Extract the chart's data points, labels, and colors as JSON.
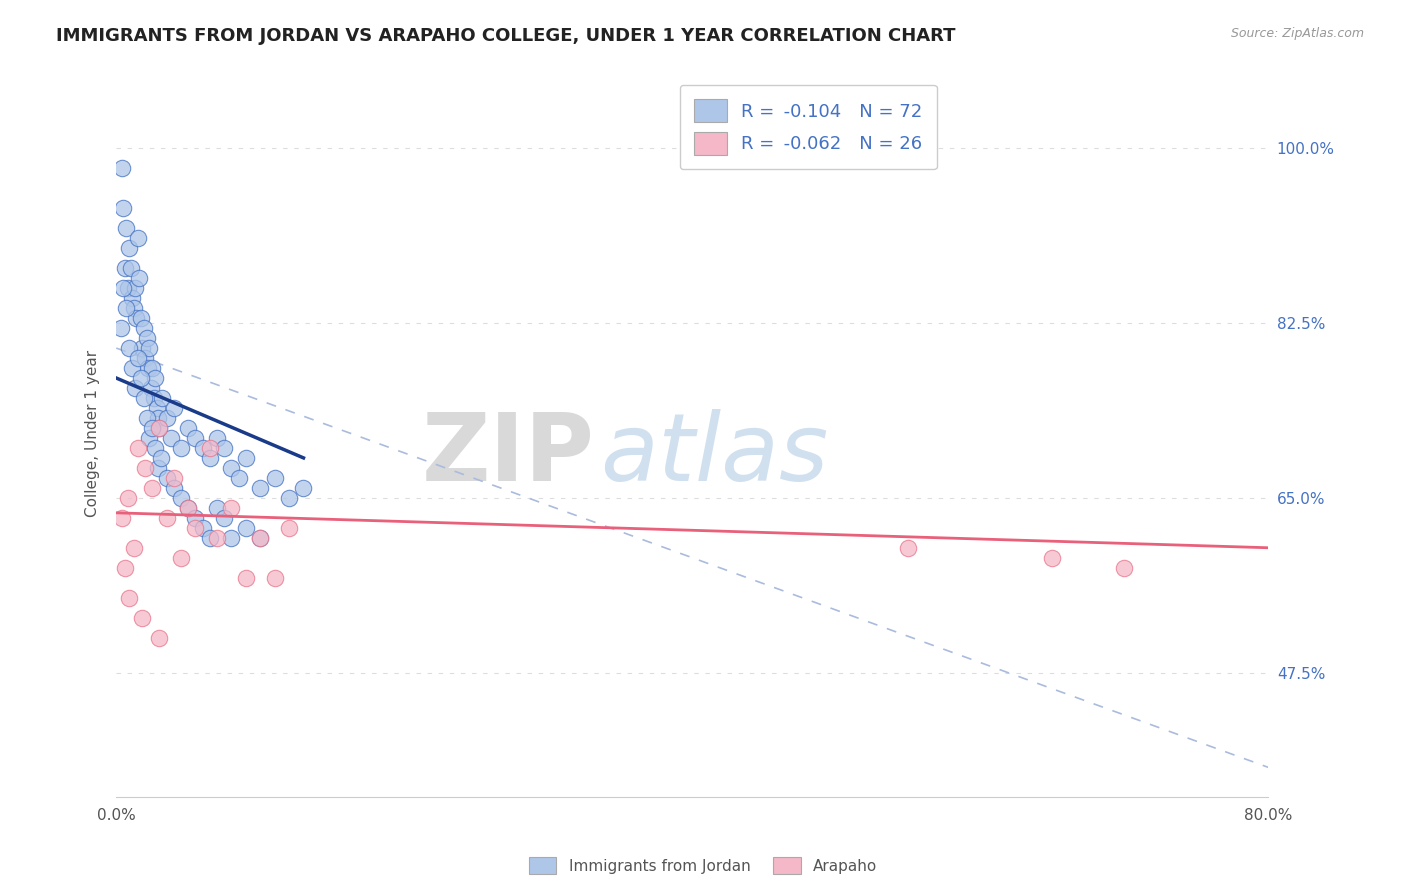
{
  "title": "IMMIGRANTS FROM JORDAN VS ARAPAHO COLLEGE, UNDER 1 YEAR CORRELATION CHART",
  "source_text": "Source: ZipAtlas.com",
  "ylabel": "College, Under 1 year",
  "legend_bottom": [
    "Immigrants from Jordan",
    "Arapaho"
  ],
  "series1_R": -0.104,
  "series1_N": 72,
  "series2_R": -0.062,
  "series2_N": 26,
  "color_blue": "#AEC6E8",
  "color_pink": "#F4B8C8",
  "color_blue_dark": "#4472C4",
  "color_pink_dark": "#E8758A",
  "line_blue": "#1A3A8A",
  "line_pink": "#E8607A",
  "line_dashed_color": "#AABBDD",
  "xlim": [
    0.0,
    80.0
  ],
  "ylim": [
    35.0,
    108.0
  ],
  "yticks_right": [
    47.5,
    65.0,
    82.5,
    100.0
  ],
  "ytick_labels_right": [
    "47.5%",
    "65.0%",
    "82.5%",
    "100.0%"
  ],
  "watermark_zip": "ZIP",
  "watermark_atlas": "atlas",
  "background_color": "#FFFFFF",
  "grid_color": "#DDDDDD",
  "jordan_x": [
    0.4,
    0.5,
    0.6,
    0.7,
    0.8,
    0.9,
    1.0,
    1.1,
    1.2,
    1.3,
    1.4,
    1.5,
    1.6,
    1.7,
    1.8,
    1.9,
    2.0,
    2.1,
    2.2,
    2.3,
    2.4,
    2.5,
    2.6,
    2.7,
    2.8,
    2.9,
    3.0,
    3.2,
    3.5,
    3.8,
    4.0,
    4.5,
    5.0,
    5.5,
    6.0,
    6.5,
    7.0,
    7.5,
    8.0,
    8.5,
    9.0,
    10.0,
    11.0,
    12.0,
    13.0,
    0.3,
    0.5,
    0.7,
    0.9,
    1.1,
    1.3,
    1.5,
    1.7,
    1.9,
    2.1,
    2.3,
    2.5,
    2.7,
    2.9,
    3.1,
    3.5,
    4.0,
    4.5,
    5.0,
    5.5,
    6.0,
    6.5,
    7.0,
    7.5,
    8.0,
    9.0,
    10.0
  ],
  "jordan_y": [
    98,
    94,
    88,
    92,
    86,
    90,
    88,
    85,
    84,
    86,
    83,
    91,
    87,
    83,
    80,
    82,
    79,
    81,
    78,
    80,
    76,
    78,
    75,
    77,
    74,
    73,
    72,
    75,
    73,
    71,
    74,
    70,
    72,
    71,
    70,
    69,
    71,
    70,
    68,
    67,
    69,
    66,
    67,
    65,
    66,
    82,
    86,
    84,
    80,
    78,
    76,
    79,
    77,
    75,
    73,
    71,
    72,
    70,
    68,
    69,
    67,
    66,
    65,
    64,
    63,
    62,
    61,
    64,
    63,
    61,
    62,
    61
  ],
  "arapaho_x": [
    0.4,
    0.8,
    1.5,
    2.0,
    3.0,
    4.0,
    5.0,
    6.5,
    8.0,
    10.0,
    11.0,
    12.0,
    0.6,
    1.2,
    2.5,
    3.5,
    4.5,
    5.5,
    7.0,
    9.0,
    55.0,
    65.0,
    70.0,
    0.9,
    1.8,
    3.0
  ],
  "arapaho_y": [
    63,
    65,
    70,
    68,
    72,
    67,
    64,
    70,
    64,
    61,
    57,
    62,
    58,
    60,
    66,
    63,
    59,
    62,
    61,
    57,
    60,
    59,
    58,
    55,
    53,
    51
  ],
  "blue_trend_x_start": 0.0,
  "blue_trend_x_end": 13.0,
  "blue_trend_y_start": 77.0,
  "blue_trend_y_end": 69.0,
  "pink_trend_x_start": 0.0,
  "pink_trend_x_end": 80.0,
  "pink_trend_y_start": 63.5,
  "pink_trend_y_end": 60.0,
  "dashed_x_start": 0.0,
  "dashed_x_end": 80.0,
  "dashed_y_start": 80.0,
  "dashed_y_end": 38.0
}
